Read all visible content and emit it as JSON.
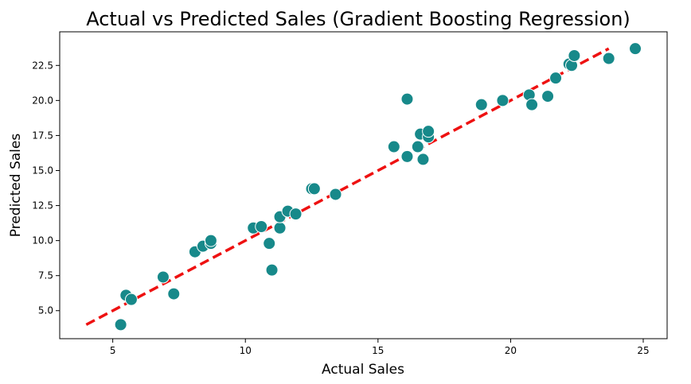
{
  "chart_data": {
    "type": "scatter",
    "title": "Actual vs Predicted Sales (Gradient Boosting Regression)",
    "xlabel": "Actual Sales",
    "ylabel": "Predicted Sales",
    "xlim": [
      3.0,
      25.9
    ],
    "ylim": [
      3.0,
      24.9
    ],
    "xticks": [
      5,
      10,
      15,
      20,
      25
    ],
    "xtick_labels": [
      "5",
      "10",
      "15",
      "20",
      "25"
    ],
    "yticks": [
      5.0,
      7.5,
      10.0,
      12.5,
      15.0,
      17.5,
      20.0,
      22.5
    ],
    "ytick_labels": [
      "5.0",
      "7.5",
      "10.0",
      "12.5",
      "15.0",
      "17.5",
      "20.0",
      "22.5"
    ],
    "grid": false,
    "legend": "none",
    "point_color": "#17898a",
    "point_edge_color": "#ffffff",
    "reference_line": {
      "style": "dashed",
      "color": "#ee1111",
      "x": [
        4.0,
        23.7
      ],
      "y": [
        4.0,
        23.7
      ]
    },
    "series": [
      {
        "points": [
          [
            5.3,
            4.0
          ],
          [
            5.5,
            6.1
          ],
          [
            5.7,
            5.8
          ],
          [
            6.9,
            7.4
          ],
          [
            7.3,
            6.2
          ],
          [
            8.1,
            9.2
          ],
          [
            8.4,
            9.6
          ],
          [
            8.7,
            9.8
          ],
          [
            8.7,
            10.0
          ],
          [
            10.3,
            10.9
          ],
          [
            10.6,
            11.0
          ],
          [
            10.9,
            9.8
          ],
          [
            11.0,
            7.9
          ],
          [
            11.3,
            10.9
          ],
          [
            11.3,
            11.7
          ],
          [
            11.6,
            12.1
          ],
          [
            11.9,
            11.9
          ],
          [
            12.5,
            13.7
          ],
          [
            12.6,
            13.7
          ],
          [
            13.4,
            13.3
          ],
          [
            15.6,
            16.7
          ],
          [
            16.1,
            20.1
          ],
          [
            16.1,
            16.0
          ],
          [
            16.5,
            16.7
          ],
          [
            16.6,
            17.6
          ],
          [
            16.7,
            15.8
          ],
          [
            16.9,
            17.4
          ],
          [
            16.9,
            17.8
          ],
          [
            18.9,
            19.7
          ],
          [
            19.7,
            20.0
          ],
          [
            20.7,
            20.4
          ],
          [
            20.8,
            19.7
          ],
          [
            21.4,
            20.3
          ],
          [
            21.7,
            21.6
          ],
          [
            22.2,
            22.6
          ],
          [
            22.3,
            22.5
          ],
          [
            22.4,
            23.2
          ],
          [
            23.7,
            23.0
          ],
          [
            24.7,
            23.7
          ]
        ]
      }
    ]
  }
}
